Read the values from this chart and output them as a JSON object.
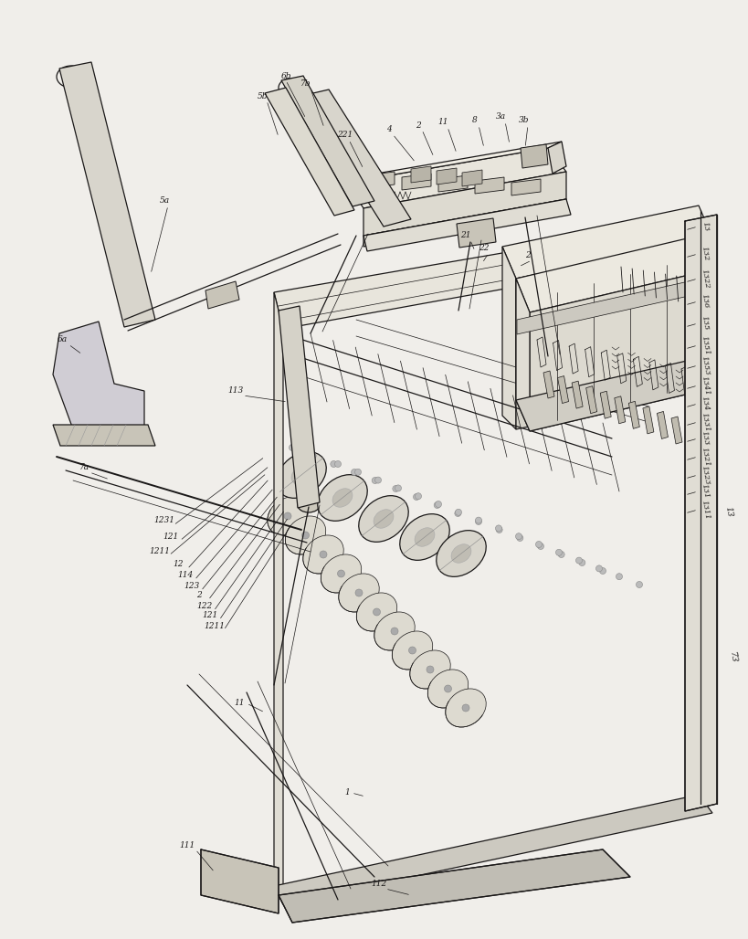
{
  "bg": "#f0eeea",
  "lc": "#1a1818",
  "fig_w": 8.0,
  "fig_h": 10.08,
  "dpi": 100,
  "lw": 0.9,
  "lw_thin": 0.5,
  "lw_thick": 1.4,
  "note": "All coords in pixel space 0-800 x 0-1008, y=0 top"
}
